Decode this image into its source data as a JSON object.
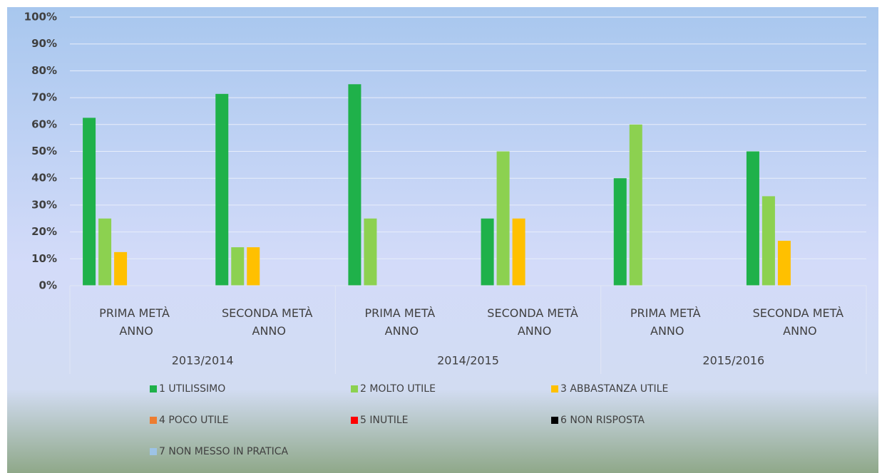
{
  "chart_data": {
    "type": "bar",
    "categories": [
      "PRIMA METÀ ANNO",
      "SECONDA METÀ ANNO",
      "PRIMA METÀ ANNO",
      "SECONDA METÀ ANNO",
      "PRIMA METÀ ANNO",
      "SECONDA METÀ ANNO"
    ],
    "groups": [
      "2013/2014",
      "2014/2015",
      "2015/2016"
    ],
    "series": [
      {
        "name": "1 UTILISSIMO",
        "color": "#1fb14a",
        "values": [
          62.5,
          71.4,
          75,
          25,
          40,
          50
        ]
      },
      {
        "name": "2 MOLTO UTILE",
        "color": "#8cd150",
        "values": [
          25,
          14.3,
          25,
          50,
          60,
          33.3
        ]
      },
      {
        "name": "3 ABBASTANZA UTILE",
        "color": "#ffc000",
        "values": [
          12.5,
          14.3,
          0,
          25,
          0,
          16.7
        ]
      },
      {
        "name": "4 POCO UTILE",
        "color": "#ed7d31",
        "values": [
          0,
          0,
          0,
          0,
          0,
          0
        ]
      },
      {
        "name": "5 INUTILE",
        "color": "#ff0000",
        "values": [
          0,
          0,
          0,
          0,
          0,
          0
        ]
      },
      {
        "name": "6 NON RISPOSTA",
        "color": "#000000",
        "values": [
          0,
          0,
          0,
          0,
          0,
          0
        ]
      },
      {
        "name": "7 NON MESSO IN PRATICA",
        "color": "#9dc3e6",
        "values": [
          0,
          0,
          0,
          0,
          0,
          0
        ]
      }
    ],
    "ylim": [
      0,
      100
    ],
    "yticks": [
      {
        "value": 0,
        "label": "0%"
      },
      {
        "value": 10,
        "label": "10%"
      },
      {
        "value": 20,
        "label": "20%"
      },
      {
        "value": 30,
        "label": "30%"
      },
      {
        "value": 40,
        "label": "40%"
      },
      {
        "value": 50,
        "label": "50%"
      },
      {
        "value": 60,
        "label": "60%"
      },
      {
        "value": 70,
        "label": "70%"
      },
      {
        "value": 80,
        "label": "80%"
      },
      {
        "value": 90,
        "label": "90%"
      },
      {
        "value": 100,
        "label": "100%"
      }
    ],
    "grid": true,
    "legend": "bottom"
  }
}
